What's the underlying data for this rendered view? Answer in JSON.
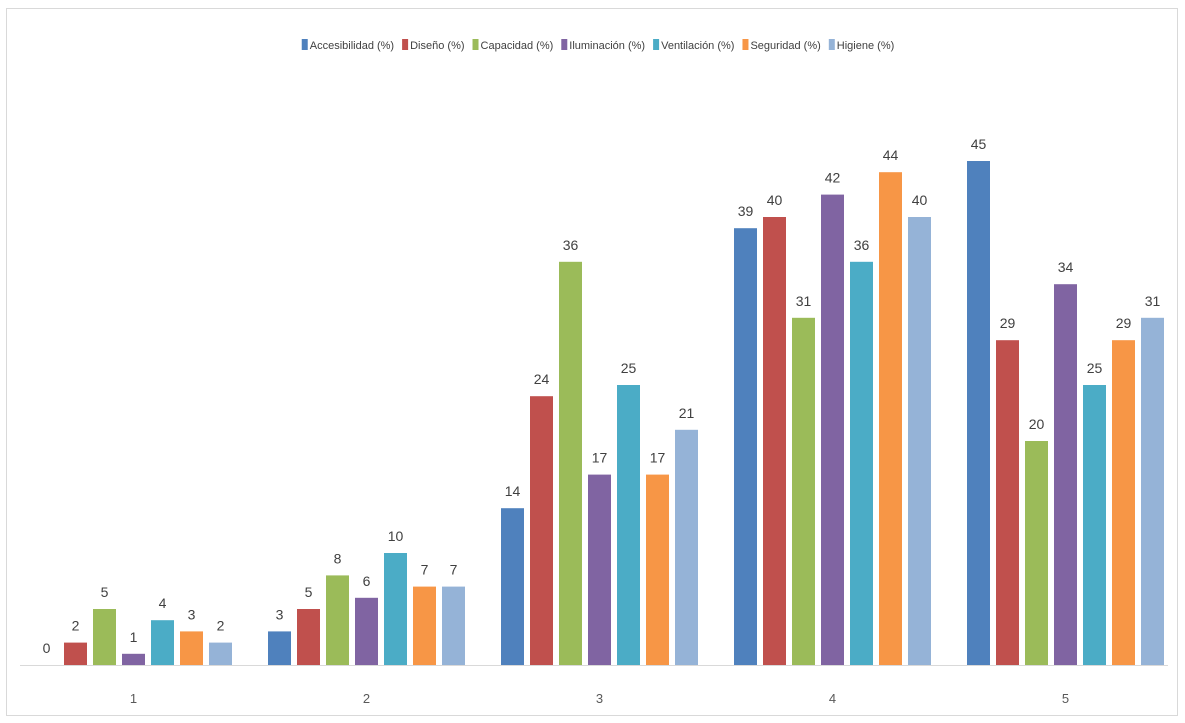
{
  "chart_data": {
    "type": "bar",
    "categories": [
      "1",
      "2",
      "3",
      "4",
      "5"
    ],
    "series": [
      {
        "name": "Accesibilidad (%)",
        "color": "#4f81bd",
        "values": [
          0,
          3,
          14,
          39,
          45
        ]
      },
      {
        "name": "Diseño (%)",
        "color": "#c0504d",
        "values": [
          2,
          5,
          24,
          40,
          29
        ]
      },
      {
        "name": "Capacidad (%)",
        "color": "#9bbb59",
        "values": [
          5,
          8,
          36,
          31,
          20
        ]
      },
      {
        "name": "Iluminación (%)",
        "color": "#8064a2",
        "values": [
          1,
          6,
          17,
          42,
          34
        ]
      },
      {
        "name": "Ventilación (%)",
        "color": "#4bacc6",
        "values": [
          4,
          10,
          25,
          36,
          25
        ]
      },
      {
        "name": "Seguridad (%)",
        "color": "#f79646",
        "values": [
          3,
          7,
          17,
          44,
          29
        ]
      },
      {
        "name": "Higiene (%)",
        "color": "#95b3d7",
        "values": [
          2,
          7,
          21,
          40,
          31
        ]
      }
    ],
    "ylim": [
      0,
      45
    ],
    "grid": false,
    "legend": "top-center"
  }
}
